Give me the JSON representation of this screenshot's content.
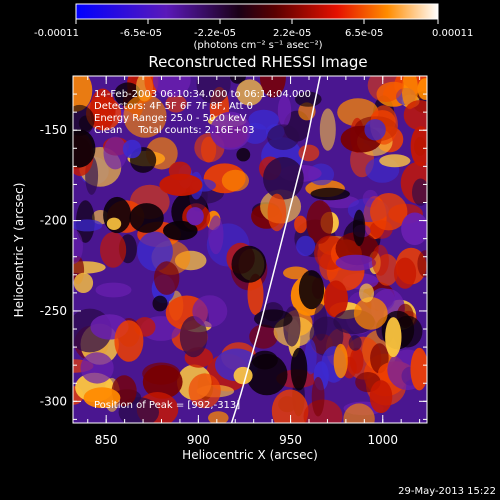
{
  "colorbar": {
    "ticks": [
      "-0.00011",
      "-6.5e-05",
      "-2.2e-05",
      "2.2e-05",
      "6.5e-05",
      "0.00011"
    ],
    "units": "(photons cm⁻² s⁻¹ asec⁻²)"
  },
  "title": "Reconstructed RHESSI Image",
  "annotations": {
    "time_range": "14-Feb-2003 06:10:34.000 to 06:14:04.000",
    "detectors": "Detectors: 4F 5F 6F 7F 8F, Att 0",
    "energy": "Energy Range: 25.0 - 50.0 keV",
    "method": "Clean     Total counts: 2.16E+03",
    "peak": "Position of Peak = [992,-313]"
  },
  "footer": {
    "date": "29-May-2013 15:22"
  },
  "colors": {
    "background": "#000000",
    "limb": "#ffffff",
    "text": "#ffffff"
  },
  "chart_data": {
    "type": "heatmap",
    "title": "Reconstructed RHESSI Image",
    "xlabel": "Heliocentric X (arcsec)",
    "ylabel": "Heliocentric Y (arcsec)",
    "xlim": [
      832,
      1024
    ],
    "ylim": [
      -312,
      -120
    ],
    "xticks": [
      850,
      900,
      950,
      1000
    ],
    "yticks": [
      -150,
      -200,
      -250,
      -300
    ],
    "colorbar_range": [
      -0.00011,
      0.00011
    ],
    "colormap": "blue-purple-red-yellow-white",
    "limb_curve": {
      "x": [
        918,
        923,
        928,
        933,
        938,
        943,
        948,
        953,
        958,
        962,
        966
      ],
      "y": [
        -312,
        -296,
        -278,
        -260,
        -240,
        -220,
        -200,
        -180,
        -160,
        -140,
        -120
      ]
    },
    "peak_position": [
      992,
      -313
    ]
  }
}
